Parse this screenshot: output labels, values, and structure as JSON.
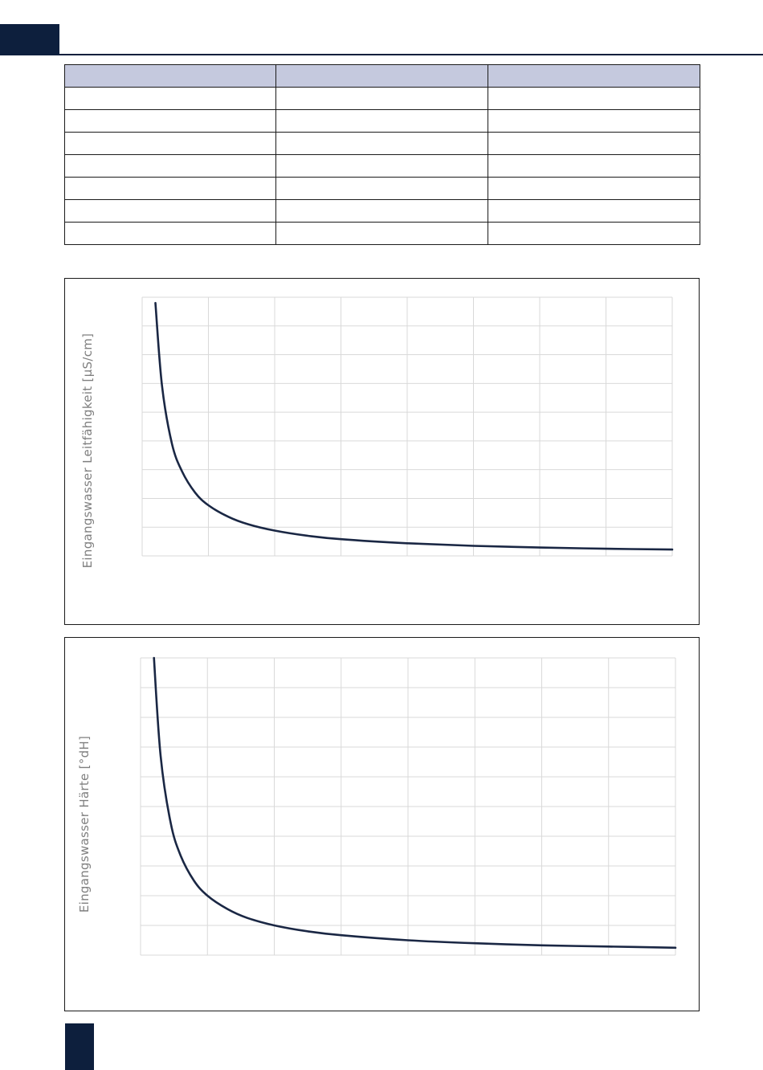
{
  "colors": {
    "accent": "#0d1f3d",
    "table_header": "#c5c9de",
    "curve": "#1a2744",
    "grid": "#d9d9d9",
    "axis_label": "#7f7f7f"
  },
  "table": {
    "header": [
      "",
      "",
      ""
    ],
    "rows": [
      [
        "",
        "",
        ""
      ],
      [
        "",
        "",
        ""
      ],
      [
        "",
        "",
        ""
      ],
      [
        "",
        "",
        ""
      ],
      [
        "",
        "",
        ""
      ],
      [
        "",
        "",
        ""
      ],
      [
        "",
        "",
        ""
      ]
    ]
  },
  "chart_data": [
    {
      "type": "line",
      "title": "",
      "xlabel": "",
      "ylabel": "Eingangswasser Leitfähigkeit [µS/cm]",
      "grid": true,
      "x_grid_count": 8,
      "y_grid_count": 9,
      "xlim": [
        0,
        8
      ],
      "ylim": [
        0,
        9
      ],
      "series": [
        {
          "x": [
            0.2,
            0.3,
            0.45,
            0.6,
            0.8,
            1.0,
            1.3,
            1.6,
            2.0,
            2.5,
            3.0,
            4.0,
            5.0,
            6.0,
            7.0,
            8.0
          ],
          "values": [
            8.8,
            5.9,
            3.9,
            2.95,
            2.2,
            1.76,
            1.36,
            1.1,
            0.88,
            0.7,
            0.58,
            0.44,
            0.35,
            0.29,
            0.25,
            0.22
          ]
        }
      ]
    },
    {
      "type": "line",
      "title": "",
      "xlabel": "",
      "ylabel": "Eingangswasser Härte [°dH]",
      "grid": true,
      "x_grid_count": 8,
      "y_grid_count": 10,
      "xlim": [
        0,
        8
      ],
      "ylim": [
        0,
        10
      ],
      "series": [
        {
          "x": [
            0.2,
            0.3,
            0.45,
            0.6,
            0.8,
            1.0,
            1.3,
            1.6,
            2.0,
            2.5,
            3.0,
            4.0,
            5.0,
            6.0,
            7.0,
            8.0
          ],
          "values": [
            10.0,
            6.7,
            4.45,
            3.35,
            2.5,
            2.0,
            1.55,
            1.25,
            1.0,
            0.8,
            0.67,
            0.5,
            0.4,
            0.33,
            0.29,
            0.25
          ]
        }
      ]
    }
  ]
}
